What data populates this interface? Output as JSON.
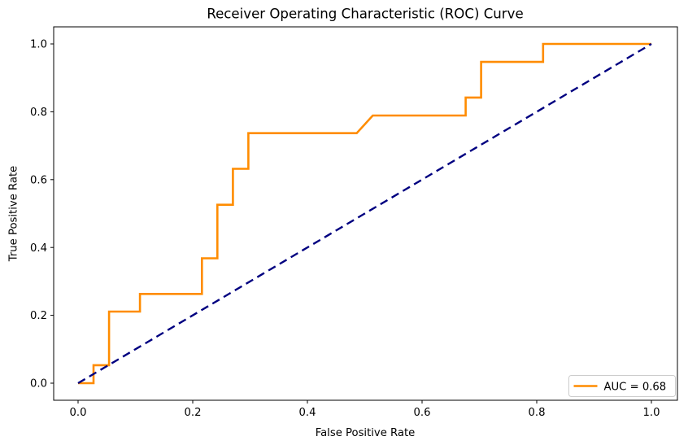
{
  "chart_data": {
    "type": "line",
    "title": "Receiver Operating Characteristic (ROC) Curve",
    "xlabel": "False Positive Rate",
    "ylabel": "True Positive Rate",
    "x_tick_labels": [
      "0.0",
      "0.2",
      "0.4",
      "0.6",
      "0.8",
      "1.0"
    ],
    "x_tick_values": [
      0.0,
      0.2,
      0.4,
      0.6,
      0.8,
      1.0
    ],
    "y_tick_labels": [
      "0.0",
      "0.2",
      "0.4",
      "0.6",
      "0.8",
      "1.0"
    ],
    "y_tick_values": [
      0.0,
      0.2,
      0.4,
      0.6,
      0.8,
      1.0
    ],
    "xlim": [
      -0.043,
      1.046
    ],
    "ylim": [
      -0.05,
      1.05
    ],
    "grid": false,
    "auc": 0.68,
    "legend": {
      "position": "lower right",
      "entries": [
        {
          "label": "AUC = 0.68",
          "series": "roc-curve",
          "color": "#ff8c00"
        }
      ]
    },
    "series": [
      {
        "name": "roc-curve",
        "label": "AUC = 0.68",
        "color": "#ff8c00",
        "linewidth": 2.6,
        "linestyle": "solid",
        "points": [
          [
            0.0,
            0.0
          ],
          [
            0.027,
            0.0
          ],
          [
            0.027,
            0.053
          ],
          [
            0.054,
            0.053
          ],
          [
            0.054,
            0.211
          ],
          [
            0.108,
            0.211
          ],
          [
            0.108,
            0.263
          ],
          [
            0.216,
            0.263
          ],
          [
            0.216,
            0.368
          ],
          [
            0.243,
            0.368
          ],
          [
            0.243,
            0.526
          ],
          [
            0.27,
            0.526
          ],
          [
            0.27,
            0.632
          ],
          [
            0.297,
            0.632
          ],
          [
            0.297,
            0.737
          ],
          [
            0.486,
            0.737
          ],
          [
            0.514,
            0.789
          ],
          [
            0.676,
            0.789
          ],
          [
            0.676,
            0.842
          ],
          [
            0.703,
            0.842
          ],
          [
            0.703,
            0.947
          ],
          [
            0.811,
            0.947
          ],
          [
            0.811,
            1.0
          ],
          [
            1.0,
            1.0
          ]
        ]
      },
      {
        "name": "chance-diagonal",
        "label": "",
        "color": "#000080",
        "linewidth": 2.4,
        "linestyle": "dashed",
        "points": [
          [
            0.0,
            0.0
          ],
          [
            1.0,
            1.0
          ]
        ]
      }
    ],
    "colors": {
      "axes": "#000000",
      "text": "#000000",
      "legend_border": "#cccccc",
      "background": "#ffffff"
    }
  }
}
